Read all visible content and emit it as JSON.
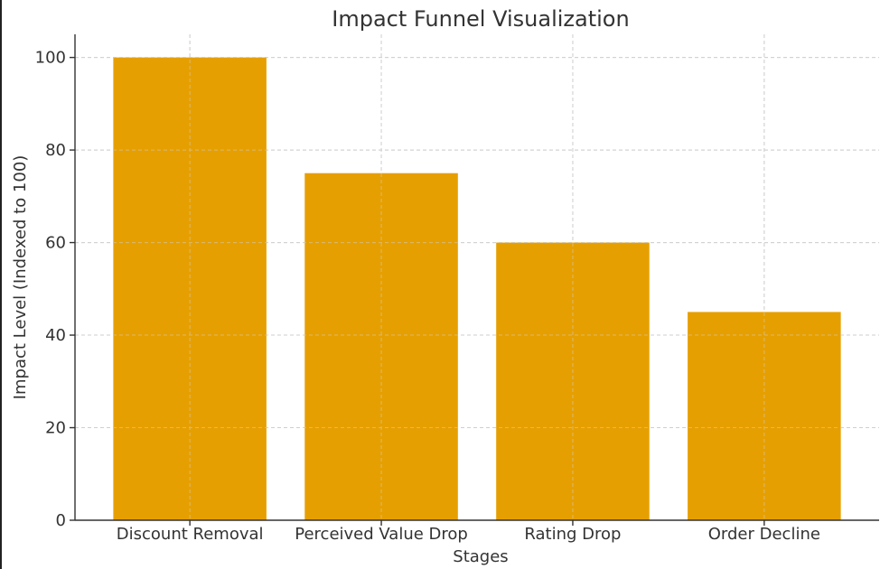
{
  "chart_data": {
    "type": "bar",
    "title": "Impact Funnel Visualization",
    "xlabel": "Stages",
    "ylabel": "Impact Level (Indexed to 100)",
    "categories": [
      "Discount Removal",
      "Perceived Value Drop",
      "Rating Drop",
      "Order Decline"
    ],
    "values": [
      100,
      75,
      60,
      45
    ],
    "ylim": [
      0,
      105
    ],
    "yticks": [
      0,
      20,
      40,
      60,
      80,
      100
    ],
    "grid": true,
    "bar_color": "#E69F00"
  }
}
